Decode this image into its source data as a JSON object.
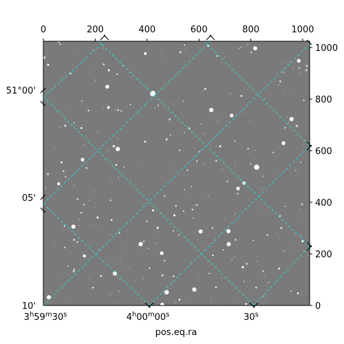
{
  "image": {
    "description_type": "astronomical image",
    "background_color": "#7a7a7a",
    "star_color": "#ffffff",
    "grid_color": "#2fd5d5"
  },
  "axes": {
    "top_ticks": [
      "0",
      "200",
      "400",
      "600",
      "800",
      "1000"
    ],
    "right_ticks": [
      "0",
      "200",
      "400",
      "600",
      "800",
      "1000"
    ],
    "dec_labels": [
      "51°00'",
      "05'",
      "10'"
    ],
    "ra_labels": {
      "first": {
        "h": "3",
        "m": "59",
        "s": "30"
      },
      "second": {
        "h": "4",
        "m": "00",
        "s": "00"
      },
      "third": {
        "s": "30"
      }
    },
    "xlabel": "pos.eq.ra"
  }
}
